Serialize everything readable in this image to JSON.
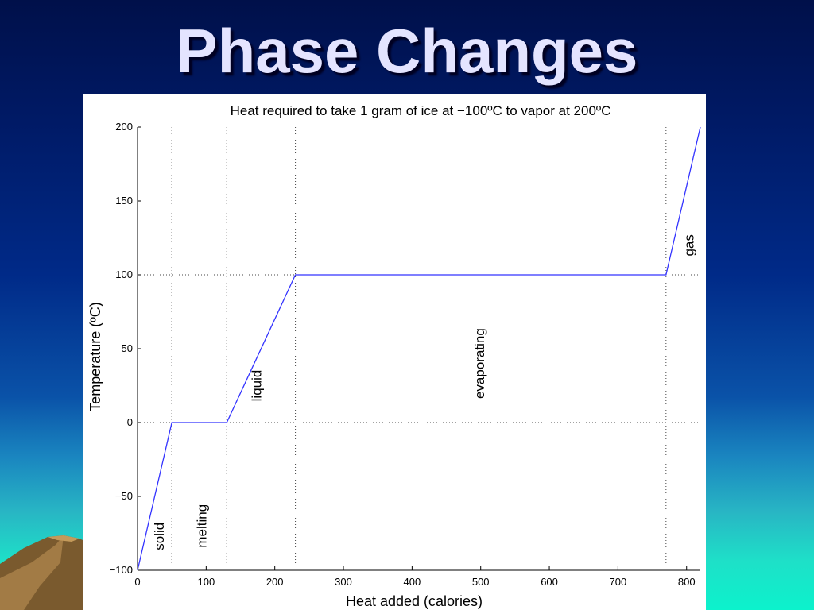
{
  "slide": {
    "title": "Phase Changes"
  },
  "colors": {
    "line": "#3333ff",
    "title_text": "#e4e4ff"
  },
  "chart_data": {
    "type": "line",
    "title": "Heat required to take 1 gram of ice at −100ºC to vapor at 200ºC",
    "xlabel": "Heat added (calories)",
    "ylabel": "Temperature (ºC)",
    "xlim": [
      0,
      820
    ],
    "ylim": [
      -100,
      200
    ],
    "xticks": [
      0,
      100,
      200,
      300,
      400,
      500,
      600,
      700,
      800
    ],
    "xtick_labels": [
      "0",
      "100",
      "200",
      "300",
      "400",
      "500",
      "600",
      "700",
      "800"
    ],
    "yticks": [
      -100,
      -50,
      0,
      50,
      100,
      150,
      200
    ],
    "ytick_labels": [
      "−100",
      "−50",
      "0",
      "50",
      "100",
      "150",
      "200"
    ],
    "grid": false,
    "reference_lines": {
      "vertical_x": [
        50,
        130,
        230,
        770
      ],
      "horizontal_y": [
        0,
        100
      ],
      "style": "dotted"
    },
    "series": [
      {
        "x": [
          0,
          50,
          130,
          230,
          770,
          820
        ],
        "y": [
          -100,
          0,
          0,
          100,
          100,
          200
        ]
      }
    ],
    "annotations": [
      {
        "text": "solid",
        "x": 38,
        "y": -77,
        "rotation": -90
      },
      {
        "text": "melting",
        "x": 100,
        "y": -70,
        "rotation": -90
      },
      {
        "text": "liquid",
        "x": 180,
        "y": 25,
        "rotation": -90
      },
      {
        "text": "evaporating",
        "x": 505,
        "y": 40,
        "rotation": -90
      },
      {
        "text": "gas",
        "x": 810,
        "y": 120,
        "rotation": -90
      }
    ]
  }
}
